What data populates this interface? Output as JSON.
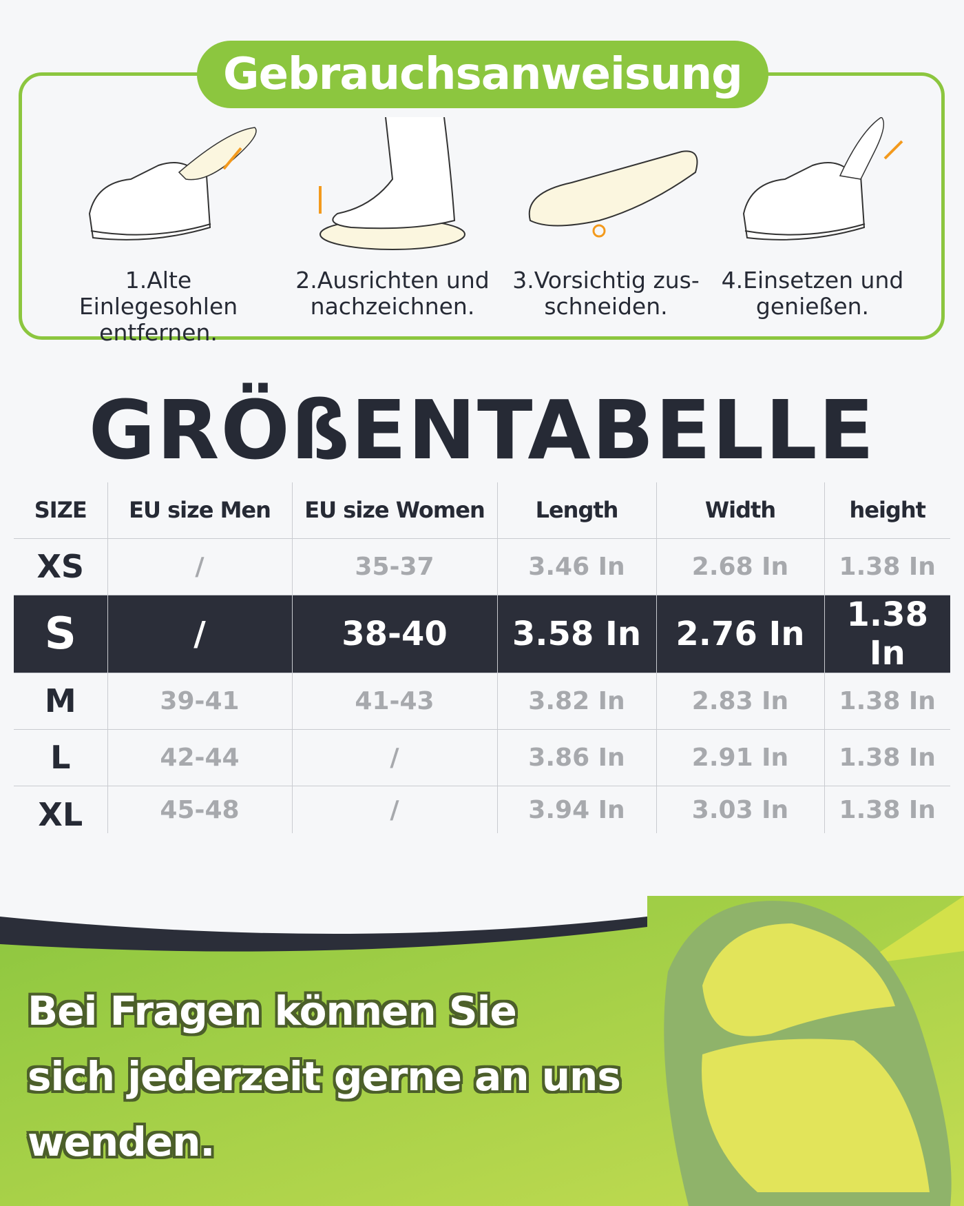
{
  "guide": {
    "title": "Gebrauchsanweisung",
    "steps": [
      {
        "label": "1.Alte Einlegesohlen entfernen.",
        "icon": "shoe-remove-insole-icon"
      },
      {
        "label": "2.Ausrichten und nachzeichnen.",
        "icon": "foot-trace-icon"
      },
      {
        "label": "3.Vorsichtig zus-schneiden.",
        "icon": "insole-cut-icon"
      },
      {
        "label": "4.Einsetzen und genießen.",
        "icon": "shoe-insert-insole-icon"
      }
    ]
  },
  "size_chart": {
    "title": "GRÖßENTABELLE",
    "headers": [
      "SIZE",
      "EU size Men",
      "EU size Women",
      "Length",
      "Width",
      "height"
    ],
    "rows": [
      [
        "XS",
        "/",
        "35-37",
        "3.46 In",
        "2.68 In",
        "1.38 In"
      ],
      [
        "S",
        "/",
        "38-40",
        "3.58 In",
        "2.76 In",
        "1.38 In"
      ],
      [
        "M",
        "39-41",
        "41-43",
        "3.82 In",
        "2.83 In",
        "1.38 In"
      ],
      [
        "L",
        "42-44",
        "/",
        "3.86 In",
        "2.91 In",
        "1.38 In"
      ],
      [
        "XL",
        "45-48",
        "/",
        "3.94 In",
        "3.03 In",
        "1.38 In"
      ]
    ],
    "highlighted_row": "S"
  },
  "footer": {
    "lines": [
      "Bei Fragen können Sie",
      "sich jederzeit gerne an uns",
      "wenden."
    ]
  },
  "colors": {
    "accent_green": "#8cc63f",
    "dark": "#2b2e39",
    "muted_text": "#a7a9ad"
  }
}
